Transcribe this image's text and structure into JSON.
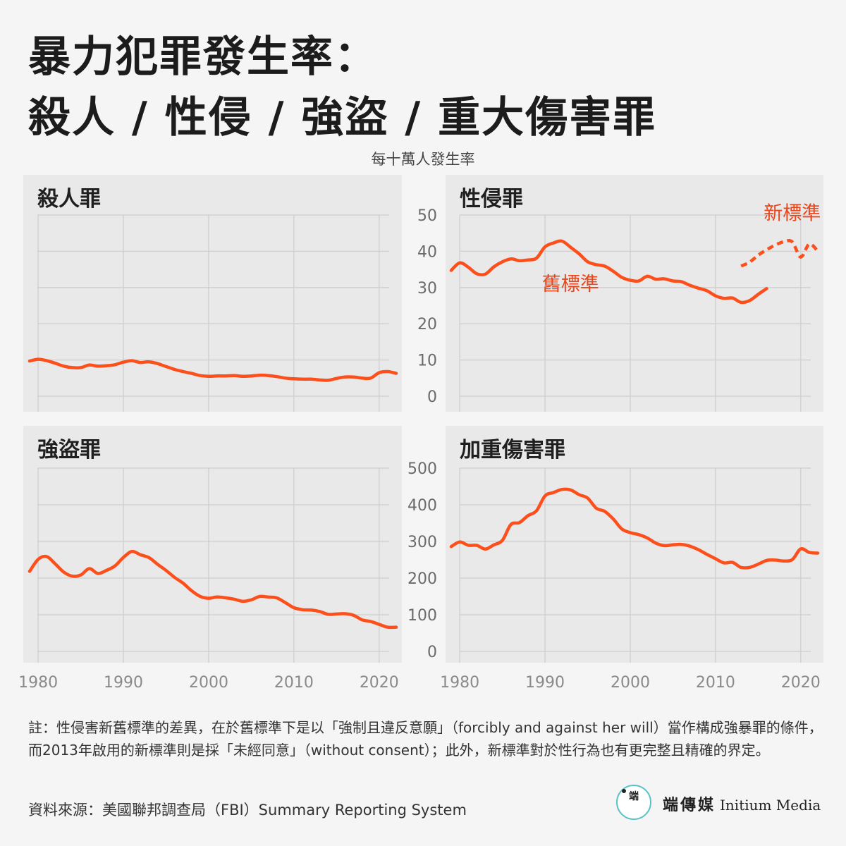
{
  "title": {
    "line1": "暴力犯罪發生率：",
    "line2": "殺人 / 性侵 / 強盜 / 重大傷害罪"
  },
  "subtitle": "每十萬人發生率",
  "colors": {
    "line": "#fc4f1b",
    "label": "#e8461c",
    "panel": "#e9e9e9",
    "grid": "#cfcfcf",
    "tick": "#8a8a8a",
    "background": "#f5f5f5"
  },
  "note": "註：性侵害新舊標準的差異，在於舊標準下是以「強制且違反意願」（forcibly and against her will）當作構成強暴罪的條件，而2013年啟用的新標準則是採「未經同意」（without consent）；此外，新標準對於性行為也有更完整且精確的界定。",
  "source": "資料來源：美國聯邦調查局（FBI）Summary Reporting System",
  "logo": {
    "icon": "initium-logo-icon",
    "glyph": "端",
    "zh": "端傳媒",
    "en": "Initium Media"
  },
  "chart_data": [
    {
      "type": "line",
      "title": "殺人罪",
      "x_ticks": [
        "1980",
        "1990",
        "2000",
        "2010",
        "2020"
      ],
      "xlim": [
        1979,
        2022
      ],
      "y_ticks": [
        "0",
        "10",
        "20",
        "30",
        "40",
        "50"
      ],
      "ylim": [
        0,
        50
      ],
      "show_y_ticks": false,
      "show_x_ticks": false,
      "grid": true,
      "series": [
        {
          "name": "",
          "style": "solid",
          "x": [
            1979,
            1980,
            1981,
            1982,
            1983,
            1984,
            1985,
            1986,
            1987,
            1988,
            1989,
            1990,
            1991,
            1992,
            1993,
            1994,
            1995,
            1996,
            1997,
            1998,
            1999,
            2000,
            2001,
            2002,
            2003,
            2004,
            2005,
            2006,
            2007,
            2008,
            2009,
            2010,
            2011,
            2012,
            2013,
            2014,
            2015,
            2016,
            2017,
            2018,
            2019,
            2020,
            2021,
            2022
          ],
          "values": [
            9.7,
            10.2,
            9.8,
            9.1,
            8.3,
            7.9,
            7.9,
            8.6,
            8.3,
            8.4,
            8.7,
            9.4,
            9.8,
            9.3,
            9.5,
            9.0,
            8.2,
            7.4,
            6.8,
            6.3,
            5.7,
            5.5,
            5.6,
            5.6,
            5.7,
            5.5,
            5.6,
            5.8,
            5.7,
            5.4,
            5.0,
            4.8,
            4.7,
            4.7,
            4.5,
            4.4,
            4.9,
            5.3,
            5.3,
            5.0,
            5.0,
            6.5,
            6.8,
            6.3
          ]
        }
      ]
    },
    {
      "type": "line",
      "title": "性侵罪",
      "x_ticks": [
        "1980",
        "1990",
        "2000",
        "2010",
        "2020"
      ],
      "xlim": [
        1979,
        2022
      ],
      "y_ticks": [
        "0",
        "10",
        "20",
        "30",
        "40",
        "50"
      ],
      "ylim": [
        0,
        50
      ],
      "show_y_ticks": true,
      "show_x_ticks": false,
      "grid": true,
      "series": [
        {
          "name": "舊標準",
          "style": "solid",
          "x": [
            1979,
            1980,
            1981,
            1982,
            1983,
            1984,
            1985,
            1986,
            1987,
            1988,
            1989,
            1990,
            1991,
            1992,
            1993,
            1994,
            1995,
            1996,
            1997,
            1998,
            1999,
            2000,
            2001,
            2002,
            2003,
            2004,
            2005,
            2006,
            2007,
            2008,
            2009,
            2010,
            2011,
            2012,
            2013,
            2014,
            2015,
            2016
          ],
          "values": [
            34.7,
            36.8,
            35.6,
            33.8,
            33.7,
            35.7,
            37.1,
            37.9,
            37.4,
            37.6,
            38.1,
            41.2,
            42.3,
            42.8,
            41.1,
            39.3,
            37.1,
            36.3,
            35.9,
            34.5,
            32.8,
            32.0,
            31.8,
            33.1,
            32.3,
            32.4,
            31.8,
            31.6,
            30.6,
            29.8,
            29.1,
            27.7,
            27.0,
            27.1,
            25.9,
            26.4,
            28.1,
            29.7
          ]
        },
        {
          "name": "新標準",
          "style": "dashed",
          "x": [
            2013,
            2014,
            2015,
            2016,
            2017,
            2018,
            2019,
            2020,
            2021,
            2022
          ],
          "values": [
            35.9,
            37.0,
            38.9,
            40.4,
            41.7,
            42.6,
            42.6,
            38.4,
            42.0,
            40.0
          ]
        }
      ]
    },
    {
      "type": "line",
      "title": "強盜罪",
      "x_ticks": [
        "1980",
        "1990",
        "2000",
        "2010",
        "2020"
      ],
      "xlim": [
        1979,
        2022
      ],
      "y_ticks": [
        "0",
        "100",
        "200",
        "300",
        "400",
        "500"
      ],
      "ylim": [
        0,
        500
      ],
      "show_y_ticks": false,
      "show_x_ticks": true,
      "grid": true,
      "series": [
        {
          "name": "",
          "style": "solid",
          "x": [
            1979,
            1980,
            1981,
            1982,
            1983,
            1984,
            1985,
            1986,
            1987,
            1988,
            1989,
            1990,
            1991,
            1992,
            1993,
            1994,
            1995,
            1996,
            1997,
            1998,
            1999,
            2000,
            2001,
            2002,
            2003,
            2004,
            2005,
            2006,
            2007,
            2008,
            2009,
            2010,
            2011,
            2012,
            2013,
            2014,
            2015,
            2016,
            2017,
            2018,
            2019,
            2020,
            2021,
            2022
          ],
          "values": [
            218.4,
            251.1,
            258.7,
            238.9,
            216.5,
            205.4,
            208.5,
            226.0,
            212.7,
            220.9,
            233.0,
            256.3,
            272.7,
            263.7,
            255.9,
            237.8,
            220.9,
            201.9,
            186.2,
            165.5,
            150.1,
            145.0,
            148.5,
            146.1,
            142.5,
            136.7,
            140.8,
            150.0,
            148.3,
            145.9,
            133.1,
            119.3,
            113.9,
            112.9,
            109.1,
            101.3,
            102.2,
            102.9,
            98.6,
            86.2,
            81.6,
            73.9,
            66.1,
            66.1
          ]
        }
      ]
    },
    {
      "type": "line",
      "title": "加重傷害罪",
      "x_ticks": [
        "1980",
        "1990",
        "2000",
        "2010",
        "2020"
      ],
      "xlim": [
        1979,
        2022
      ],
      "y_ticks": [
        "0",
        "100",
        "200",
        "300",
        "400",
        "500"
      ],
      "ylim": [
        0,
        500
      ],
      "show_y_ticks": true,
      "show_x_ticks": true,
      "grid": true,
      "series": [
        {
          "name": "",
          "style": "solid",
          "x": [
            1979,
            1980,
            1981,
            1982,
            1983,
            1984,
            1985,
            1986,
            1987,
            1988,
            1989,
            1990,
            1991,
            1992,
            1993,
            1994,
            1995,
            1996,
            1997,
            1998,
            1999,
            2000,
            2001,
            2002,
            2003,
            2004,
            2005,
            2006,
            2007,
            2008,
            2009,
            2010,
            2011,
            2012,
            2013,
            2014,
            2015,
            2016,
            2017,
            2018,
            2019,
            2020,
            2021,
            2022
          ],
          "values": [
            286.0,
            298.5,
            289.7,
            289.2,
            279.2,
            290.6,
            302.9,
            346.1,
            351.3,
            370.2,
            383.4,
            424.1,
            433.4,
            441.9,
            440.5,
            427.6,
            418.3,
            391.0,
            382.1,
            361.4,
            334.3,
            324.0,
            318.6,
            309.5,
            295.4,
            288.6,
            290.8,
            292.0,
            287.2,
            277.5,
            264.7,
            252.8,
            241.5,
            242.8,
            229.1,
            229.2,
            237.8,
            248.3,
            249.2,
            246.8,
            250.2,
            279.7,
            270.0,
            268.2
          ]
        }
      ]
    }
  ]
}
